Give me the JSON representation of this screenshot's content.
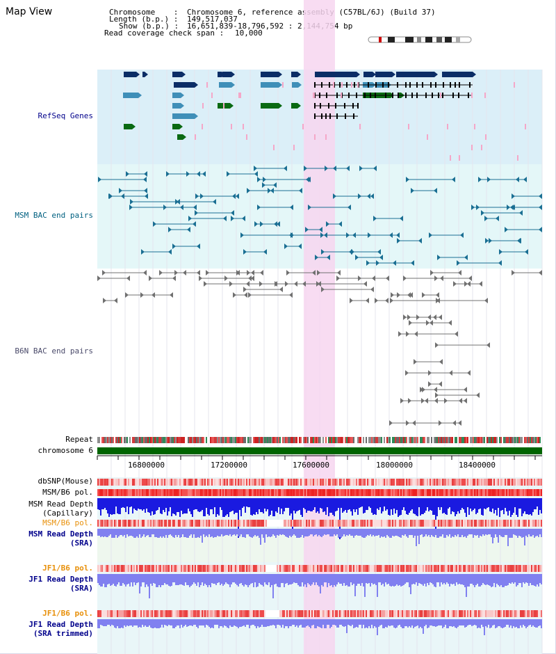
{
  "page": {
    "title": "Map View"
  },
  "header": {
    "chromosome_label": "Chromosome    :",
    "chromosome_value": "Chromosome 6, reference assembly (C57BL/6J) (Build 37)",
    "length_label": "Length (b.p.) :",
    "length_value": "149,517,037",
    "show_label": "Show (b.p.) :",
    "show_value": "16,651,839-18,796,592 : 2,144,754 bp",
    "coverage_label": "Read coverage check span :",
    "coverage_value": "10,000"
  },
  "tracks": {
    "refseq": "RefSeq Genes",
    "msm_bac": "MSM BAC end pairs",
    "b6n_bac": "B6N BAC end pairs",
    "repeat": "Repeat",
    "chromosome": "chromosome 6",
    "dbsnp": "dbSNP(Mouse)",
    "msm_b6_pol_1": "MSM/B6 pol.",
    "msm_read_depth_cap_1": "MSM Read Depth",
    "msm_read_depth_cap_2": "(Capillary)",
    "msm_b6_pol_2": "MSM/B6 pol.",
    "msm_read_depth_sra_1": "MSM Read Depth",
    "msm_read_depth_sra_2": "(SRA)",
    "jf1_b6_pol_1": "JF1/B6 pol.",
    "jf1_read_depth_sra_1": "JF1 Read Depth",
    "jf1_read_depth_sra_2": "(SRA)",
    "jf1_b6_pol_2": "JF1/B6 pol.",
    "jf1_read_depth_trim_1": "JF1 Read Depth",
    "jf1_read_depth_trim_2": "(SRA trimmed)"
  },
  "axis": {
    "tick_labels": [
      "16800000",
      "17200000",
      "17600000",
      "18000000",
      "18400000"
    ]
  },
  "colors": {
    "refseq_dark": "#0b2d66",
    "refseq_light": "#3f8fb8",
    "refseq_green": "#0a6a12",
    "refseq_pink": "#f5a7c8",
    "highlight": "#f7d6f0",
    "label_blue": "#00008b",
    "label_teal": "#006080",
    "label_orange": "#e8900a",
    "chromosome_bar": "#006400",
    "depth_capillary": "#1a1ae0",
    "depth_sra": "#8080f0"
  }
}
